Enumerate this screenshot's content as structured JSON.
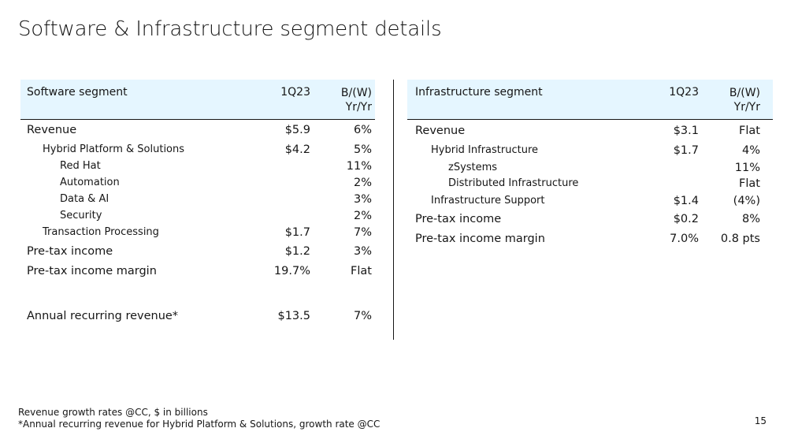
{
  "title": "Software & Infrastructure segment details",
  "software": {
    "header": {
      "segment": "Software segment",
      "col1": "1Q23",
      "col2_line1": "B/(W)",
      "col2_line2": "Yr/Yr"
    },
    "rows": [
      {
        "label": "Revenue",
        "v1": "$5.9",
        "v2": "6%"
      },
      {
        "label": "Hybrid Platform & Solutions",
        "v1": "$4.2",
        "v2": "5%"
      },
      {
        "label": "Red Hat",
        "v1": "",
        "v2": "11%"
      },
      {
        "label": "Automation",
        "v1": "",
        "v2": "2%"
      },
      {
        "label": "Data & AI",
        "v1": "",
        "v2": "3%"
      },
      {
        "label": "Security",
        "v1": "",
        "v2": "2%"
      },
      {
        "label": "Transaction Processing",
        "v1": "$1.7",
        "v2": "7%"
      },
      {
        "label": "Pre-tax income",
        "v1": "$1.2",
        "v2": "3%"
      },
      {
        "label": "Pre-tax income margin",
        "v1": "19.7%",
        "v2": "Flat"
      },
      {
        "label": "Annual recurring revenue*",
        "v1": "$13.5",
        "v2": "7%"
      }
    ]
  },
  "infrastructure": {
    "header": {
      "segment": "Infrastructure segment",
      "col1": "1Q23",
      "col2_line1": "B/(W)",
      "col2_line2": "Yr/Yr"
    },
    "rows": [
      {
        "label": "Revenue",
        "v1": "$3.1",
        "v2": "Flat"
      },
      {
        "label": "Hybrid Infrastructure",
        "v1": "$1.7",
        "v2": "4%"
      },
      {
        "label": "zSystems",
        "v1": "",
        "v2": "11%"
      },
      {
        "label": "Distributed Infrastructure",
        "v1": "",
        "v2": "Flat"
      },
      {
        "label": "Infrastructure Support",
        "v1": "$1.4",
        "v2": "(4%)"
      },
      {
        "label": "Pre-tax income",
        "v1": "$0.2",
        "v2": "8%"
      },
      {
        "label": "Pre-tax income margin",
        "v1": "7.0%",
        "v2": "0.8 pts"
      }
    ]
  },
  "footer": {
    "line1": "Revenue growth rates @CC, $ in billions",
    "line2": "*Annual recurring revenue for Hybrid Platform & Solutions, growth rate @CC"
  },
  "page_number": "15"
}
